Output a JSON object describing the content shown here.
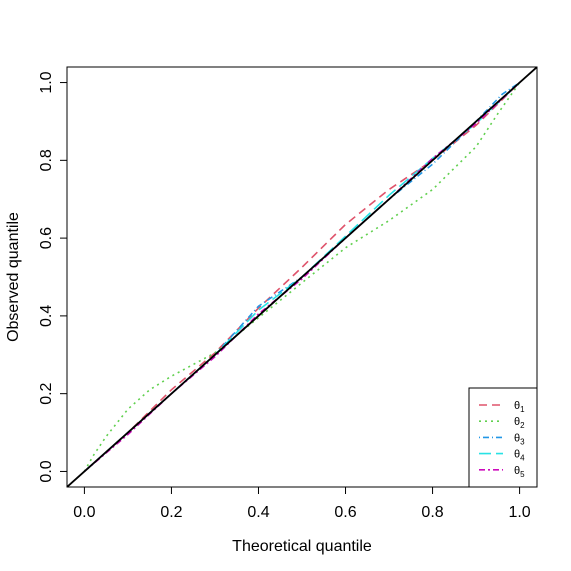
{
  "chart_data": {
    "type": "line",
    "title": "",
    "xlabel": "Theoretical quantile",
    "ylabel": "Observed quantile",
    "xlim": [
      -0.04,
      1.04
    ],
    "ylim": [
      -0.04,
      1.04
    ],
    "x_ticks": [
      0.0,
      0.2,
      0.4,
      0.6,
      0.8,
      1.0
    ],
    "y_ticks": [
      0.0,
      0.2,
      0.4,
      0.6,
      0.8,
      1.0
    ],
    "x_tick_labels": [
      "0.0",
      "0.2",
      "0.4",
      "0.6",
      "0.8",
      "1.0"
    ],
    "y_tick_labels": [
      "0.0",
      "0.2",
      "0.4",
      "0.6",
      "0.8",
      "1.0"
    ],
    "grid": false,
    "legend_position": "bottom-right",
    "reference_line": {
      "color": "#000000",
      "points": [
        [
          -0.04,
          -0.04
        ],
        [
          1.04,
          1.04
        ]
      ]
    },
    "series": [
      {
        "name": "θ1",
        "subscript": "1",
        "color": "#DF536B",
        "dash": "8,5",
        "points": [
          [
            0,
            0
          ],
          [
            0.05,
            0.05
          ],
          [
            0.1,
            0.1
          ],
          [
            0.2,
            0.21
          ],
          [
            0.3,
            0.305
          ],
          [
            0.4,
            0.42
          ],
          [
            0.5,
            0.525
          ],
          [
            0.6,
            0.635
          ],
          [
            0.7,
            0.725
          ],
          [
            0.8,
            0.8
          ],
          [
            0.9,
            0.89
          ],
          [
            1.0,
            1.0
          ]
        ]
      },
      {
        "name": "θ2",
        "subscript": "2",
        "color": "#61D04F",
        "dash": "2,4",
        "points": [
          [
            0,
            0
          ],
          [
            0.02,
            0.04
          ],
          [
            0.05,
            0.09
          ],
          [
            0.1,
            0.16
          ],
          [
            0.15,
            0.21
          ],
          [
            0.2,
            0.245
          ],
          [
            0.25,
            0.275
          ],
          [
            0.3,
            0.305
          ],
          [
            0.35,
            0.35
          ],
          [
            0.4,
            0.395
          ],
          [
            0.5,
            0.485
          ],
          [
            0.6,
            0.575
          ],
          [
            0.7,
            0.645
          ],
          [
            0.8,
            0.725
          ],
          [
            0.9,
            0.835
          ],
          [
            0.95,
            0.92
          ],
          [
            1.0,
            1.0
          ]
        ]
      },
      {
        "name": "θ3",
        "subscript": "3",
        "color": "#2297E6",
        "dash": "1,3,6,3",
        "points": [
          [
            0,
            0
          ],
          [
            0.1,
            0.1
          ],
          [
            0.2,
            0.2
          ],
          [
            0.3,
            0.3
          ],
          [
            0.4,
            0.425
          ],
          [
            0.5,
            0.5
          ],
          [
            0.6,
            0.6
          ],
          [
            0.7,
            0.7
          ],
          [
            0.8,
            0.79
          ],
          [
            0.9,
            0.9
          ],
          [
            0.96,
            0.97
          ],
          [
            1.0,
            1.0
          ]
        ]
      },
      {
        "name": "θ4",
        "subscript": "4",
        "color": "#28E2E5",
        "dash": "12,5",
        "points": [
          [
            0,
            0
          ],
          [
            0.1,
            0.1
          ],
          [
            0.2,
            0.2
          ],
          [
            0.3,
            0.3
          ],
          [
            0.4,
            0.415
          ],
          [
            0.5,
            0.5
          ],
          [
            0.6,
            0.605
          ],
          [
            0.7,
            0.71
          ],
          [
            0.8,
            0.805
          ],
          [
            0.9,
            0.895
          ],
          [
            1.0,
            1.0
          ]
        ]
      },
      {
        "name": "θ5",
        "subscript": "5",
        "color": "#CD0BBC",
        "dash": "6,3,2,3",
        "points": [
          [
            0,
            0
          ],
          [
            0.1,
            0.095
          ],
          [
            0.2,
            0.2
          ],
          [
            0.3,
            0.295
          ],
          [
            0.4,
            0.405
          ],
          [
            0.5,
            0.495
          ],
          [
            0.6,
            0.6
          ],
          [
            0.7,
            0.7
          ],
          [
            0.8,
            0.805
          ],
          [
            0.9,
            0.895
          ],
          [
            1.0,
            1.0
          ]
        ]
      }
    ]
  }
}
